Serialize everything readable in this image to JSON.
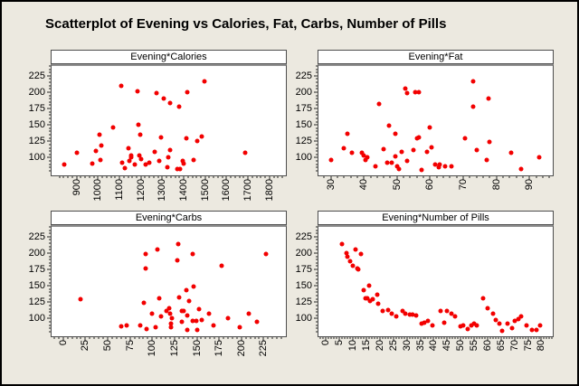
{
  "title": "Scatterplot of Evening vs Calories, Fat, Carbs, Number of Pills",
  "style": {
    "background": "#ECE9E0",
    "outer_border": "#000000",
    "panel_bg": "#FFFFFF",
    "panel_border": "#4D4D4D",
    "header_underline": "#8E8E8E",
    "dot_color": "#F20000",
    "tick_color": "#262626"
  },
  "layout_hints": {
    "grid": "off",
    "marker": "filled-circle",
    "xtick_label_rotation": -90,
    "panels": "2x2"
  },
  "chart_data": [
    {
      "type": "scatter",
      "title": "Evening*Calories",
      "xlabel": "Calories",
      "ylabel": "Evening",
      "xlim": [
        783,
        1877
      ],
      "ylim": [
        73,
        240
      ],
      "xticks": [
        900,
        1000,
        1100,
        1200,
        1300,
        1400,
        1500,
        1600,
        1700,
        1800
      ],
      "yticks": [
        100,
        125,
        150,
        175,
        200,
        225
      ],
      "x_minor_step": 20,
      "y_minor_step": 5,
      "points": [
        [
          1107,
          210
        ],
        [
          1185,
          202
        ],
        [
          1273,
          199
        ],
        [
          1306,
          191
        ],
        [
          1338,
          183
        ],
        [
          1380,
          178
        ],
        [
          1418,
          200
        ],
        [
          1495,
          217
        ],
        [
          1072,
          146
        ],
        [
          1187,
          150
        ],
        [
          1196,
          135
        ],
        [
          1005,
          135
        ],
        [
          1292,
          131
        ],
        [
          1413,
          130
        ],
        [
          1462,
          125
        ],
        [
          1485,
          133
        ],
        [
          1016,
          118
        ],
        [
          988,
          110
        ],
        [
          901,
          108
        ],
        [
          1686,
          108
        ],
        [
          1140,
          114
        ],
        [
          1153,
          104
        ],
        [
          841,
          90
        ],
        [
          974,
          91
        ],
        [
          1009,
          97
        ],
        [
          1111,
          92
        ],
        [
          1125,
          84
        ],
        [
          1145,
          95
        ],
        [
          1156,
          100
        ],
        [
          1170,
          89
        ],
        [
          1191,
          103
        ],
        [
          1201,
          98
        ],
        [
          1224,
          89
        ],
        [
          1240,
          92
        ],
        [
          1266,
          109
        ],
        [
          1285,
          95
        ],
        [
          1322,
          85
        ],
        [
          1329,
          100
        ],
        [
          1338,
          112
        ],
        [
          1371,
          83
        ],
        [
          1383,
          82
        ],
        [
          1394,
          95
        ],
        [
          1401,
          91
        ],
        [
          1448,
          97
        ]
      ]
    },
    {
      "type": "scatter",
      "title": "Evening*Fat",
      "xlabel": "Fat",
      "ylabel": "Evening",
      "xlim": [
        26.3,
        97
      ],
      "ylim": [
        73,
        240
      ],
      "xticks": [
        30,
        40,
        50,
        60,
        70,
        80,
        90
      ],
      "yticks": [
        100,
        125,
        150,
        175,
        200,
        225
      ],
      "x_minor_step": 2,
      "y_minor_step": 5,
      "points": [
        [
          30,
          97
        ],
        [
          34,
          114
        ],
        [
          35,
          136
        ],
        [
          36.5,
          107
        ],
        [
          39.5,
          108
        ],
        [
          40,
          103
        ],
        [
          40.5,
          97
        ],
        [
          41,
          101
        ],
        [
          43.5,
          87
        ],
        [
          44.5,
          182
        ],
        [
          46,
          113
        ],
        [
          47,
          93
        ],
        [
          48.5,
          92
        ],
        [
          47.5,
          149
        ],
        [
          49.5,
          136
        ],
        [
          49.5,
          102
        ],
        [
          50,
          87
        ],
        [
          50.5,
          82
        ],
        [
          51.5,
          109
        ],
        [
          52.5,
          206
        ],
        [
          53,
          198
        ],
        [
          53,
          95
        ],
        [
          55.5,
          200
        ],
        [
          56.5,
          200
        ],
        [
          55,
          112
        ],
        [
          56,
          129
        ],
        [
          56.5,
          131
        ],
        [
          57.5,
          81
        ],
        [
          59,
          109
        ],
        [
          60,
          146
        ],
        [
          60.5,
          116
        ],
        [
          61.5,
          90
        ],
        [
          62.5,
          86
        ],
        [
          63,
          90
        ],
        [
          64.5,
          87
        ],
        [
          66.5,
          87
        ],
        [
          70.5,
          129
        ],
        [
          73,
          216
        ],
        [
          73,
          178
        ],
        [
          74,
          112
        ],
        [
          77.5,
          190
        ],
        [
          78,
          124
        ],
        [
          77,
          97
        ],
        [
          84.5,
          108
        ],
        [
          87.5,
          82
        ],
        [
          93,
          100
        ]
      ]
    },
    {
      "type": "scatter",
      "title": "Evening*Carbs",
      "xlabel": "Carbs",
      "ylabel": "Evening",
      "xlim": [
        -13,
        250
      ],
      "ylim": [
        73,
        240
      ],
      "xticks": [
        0,
        25,
        50,
        75,
        100,
        125,
        150,
        175,
        200,
        225
      ],
      "yticks": [
        100,
        125,
        150,
        175,
        200,
        225
      ],
      "x_minor_step": 5,
      "y_minor_step": 5,
      "points": [
        [
          20,
          130
        ],
        [
          65,
          88
        ],
        [
          71,
          89
        ],
        [
          87,
          90
        ],
        [
          93,
          199
        ],
        [
          93,
          176
        ],
        [
          91,
          124
        ],
        [
          94,
          84
        ],
        [
          100,
          108
        ],
        [
          104,
          87
        ],
        [
          106,
          206
        ],
        [
          108,
          131
        ],
        [
          110,
          103
        ],
        [
          116,
          112
        ],
        [
          119,
          116
        ],
        [
          120,
          108
        ],
        [
          122,
          100
        ],
        [
          121,
          92
        ],
        [
          121,
          87
        ],
        [
          129,
          214
        ],
        [
          128,
          189
        ],
        [
          130,
          133
        ],
        [
          133,
          111
        ],
        [
          135,
          112
        ],
        [
          133,
          95
        ],
        [
          138,
          144
        ],
        [
          139,
          105
        ],
        [
          139,
          82
        ],
        [
          141,
          127
        ],
        [
          145,
          96
        ],
        [
          149,
          96
        ],
        [
          146,
          149
        ],
        [
          145,
          198
        ],
        [
          150,
          82
        ],
        [
          153,
          114
        ],
        [
          156,
          98
        ],
        [
          164,
          108
        ],
        [
          169,
          90
        ],
        [
          178,
          181
        ],
        [
          185,
          100
        ],
        [
          198,
          87
        ],
        [
          208,
          108
        ],
        [
          218,
          95
        ],
        [
          228,
          199
        ]
      ]
    },
    {
      "type": "scatter",
      "title": "Evening*Number of Pills",
      "xlabel": "Number of Pills",
      "ylabel": "Evening",
      "xlim": [
        -2.8,
        84.2
      ],
      "ylim": [
        73,
        240
      ],
      "xticks": [
        0,
        5,
        10,
        15,
        20,
        25,
        30,
        35,
        40,
        45,
        50,
        55,
        60,
        65,
        70,
        75,
        80
      ],
      "yticks": [
        100,
        125,
        150,
        175,
        200,
        225
      ],
      "x_minor_step": 1,
      "y_minor_step": 5,
      "points": [
        [
          6,
          214
        ],
        [
          7.5,
          200
        ],
        [
          8,
          195
        ],
        [
          9,
          188
        ],
        [
          10,
          181
        ],
        [
          11,
          205
        ],
        [
          11.5,
          177
        ],
        [
          13,
          198
        ],
        [
          12,
          175
        ],
        [
          14,
          143
        ],
        [
          14.5,
          131
        ],
        [
          15.5,
          131
        ],
        [
          16,
          150
        ],
        [
          16.5,
          127
        ],
        [
          17.5,
          129
        ],
        [
          19,
          136
        ],
        [
          19.5,
          123
        ],
        [
          21,
          111
        ],
        [
          23,
          113
        ],
        [
          24.5,
          107
        ],
        [
          26,
          103
        ],
        [
          28.5,
          112
        ],
        [
          29.5,
          108
        ],
        [
          31,
          106
        ],
        [
          32,
          106
        ],
        [
          33.5,
          105
        ],
        [
          35.5,
          92
        ],
        [
          36.5,
          94
        ],
        [
          38,
          97
        ],
        [
          39.5,
          89
        ],
        [
          42.5,
          112
        ],
        [
          44,
          94
        ],
        [
          45,
          112
        ],
        [
          46.5,
          107
        ],
        [
          48,
          104
        ],
        [
          50,
          88
        ],
        [
          51,
          89
        ],
        [
          52.5,
          84
        ],
        [
          54,
          90
        ],
        [
          55,
          92
        ],
        [
          56,
          90
        ],
        [
          58.5,
          131
        ],
        [
          60,
          116
        ],
        [
          62,
          108
        ],
        [
          63,
          98
        ],
        [
          64.5,
          93
        ],
        [
          65.5,
          81
        ],
        [
          67.5,
          92
        ],
        [
          69,
          86
        ],
        [
          70,
          97
        ],
        [
          71.5,
          99
        ],
        [
          72.5,
          103
        ],
        [
          74.5,
          89
        ],
        [
          76.5,
          82
        ],
        [
          78,
          83
        ],
        [
          79.5,
          89
        ]
      ]
    }
  ]
}
